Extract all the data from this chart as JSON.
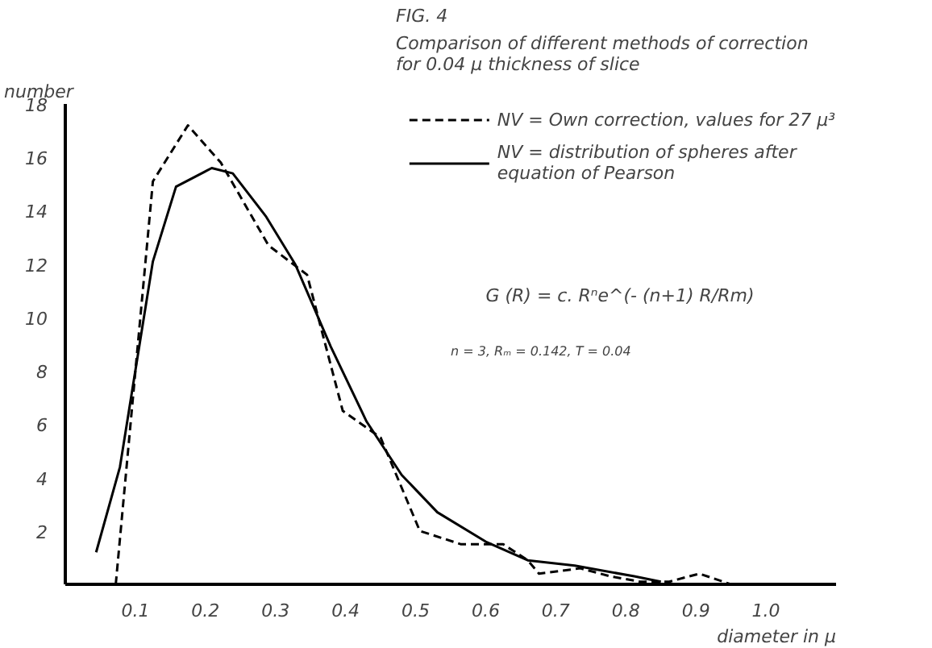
{
  "chart_data": {
    "type": "line",
    "title": "FIG. 4",
    "subtitle": "Comparison of different methods of correction\nfor 0.04 μ thickness of slice",
    "xlabel": "diameter in μ",
    "ylabel": "number",
    "series": [
      {
        "name": "NV = Own correction, values for 27 μ³",
        "color": "#000000",
        "line_style": "dashed",
        "x": [
          0.072,
          0.125,
          0.175,
          0.222,
          0.29,
          0.345,
          0.396,
          0.45,
          0.506,
          0.565,
          0.625,
          0.66,
          0.676,
          0.735,
          0.778,
          0.82,
          0.862,
          0.905,
          0.95
        ],
        "values": [
          0,
          15.1,
          17.2,
          15.8,
          12.7,
          11.6,
          6.5,
          5.5,
          2.0,
          1.5,
          1.5,
          0.9,
          0.4,
          0.6,
          0.3,
          0.1,
          0.1,
          0.4,
          0
        ]
      },
      {
        "name": "NV = distribution of spheres after\nequation of Pearson",
        "color": "#000000",
        "line_style": "solid",
        "x": [
          0.044,
          0.078,
          0.103,
          0.125,
          0.158,
          0.209,
          0.239,
          0.286,
          0.328,
          0.379,
          0.43,
          0.48,
          0.531,
          0.6,
          0.66,
          0.727,
          0.812,
          0.85
        ],
        "values": [
          1.2,
          4.4,
          8.5,
          12.1,
          14.9,
          15.6,
          15.4,
          13.8,
          12.0,
          8.9,
          6.1,
          4.1,
          2.7,
          1.6,
          0.9,
          0.7,
          0.3,
          0.1
        ]
      }
    ],
    "annotations": [
      "G (R) = c. Rⁿe^(- (n+1) R/Rm)",
      "n = 3, Rₘ = 0.142, T = 0.04"
    ],
    "xlim": [
      0,
      1.1
    ],
    "ylim": [
      0,
      18
    ],
    "xticks": [
      0.1,
      0.2,
      0.3,
      0.4,
      0.5,
      0.6,
      0.7,
      0.8,
      0.9,
      {
        "value": 1.0,
        "label": "1.0"
      }
    ],
    "yticks": [
      2,
      4,
      6,
      8,
      10,
      12,
      14,
      16,
      18
    ],
    "grid": false,
    "legend": "top right",
    "marker": "none"
  }
}
